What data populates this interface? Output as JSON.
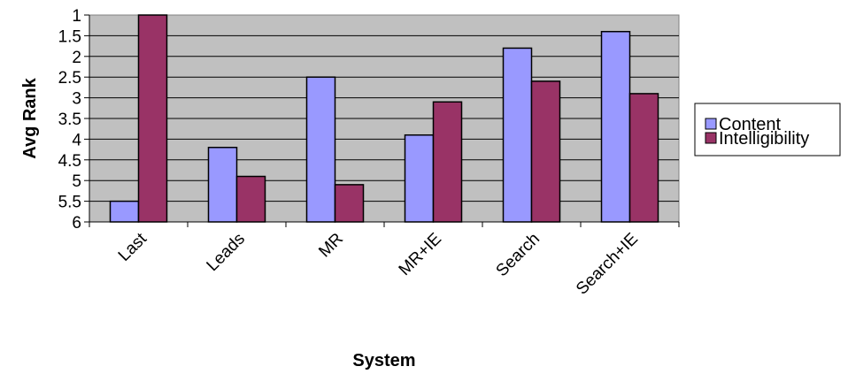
{
  "chart_data": {
    "type": "bar",
    "title": "",
    "xlabel": "System",
    "ylabel": "Avg Rank",
    "categories": [
      "Last",
      "Leads",
      "MR",
      "MR+IE",
      "Search",
      "Search+IE"
    ],
    "series": [
      {
        "name": "Content",
        "values": [
          5.5,
          4.2,
          2.5,
          3.9,
          1.8,
          1.4
        ],
        "color": "#9999ff"
      },
      {
        "name": "Intelligibility",
        "values": [
          1.0,
          4.9,
          5.1,
          3.1,
          2.6,
          2.9
        ],
        "color": "#993366"
      }
    ],
    "ylim": [
      1,
      6
    ],
    "y_inverted": true,
    "yticks": [
      {
        "value": 1,
        "label": "1"
      },
      {
        "value": 1.5,
        "label": "1.5"
      },
      {
        "value": 2,
        "label": "2"
      },
      {
        "value": 2.5,
        "label": "2.5"
      },
      {
        "value": 3,
        "label": "3"
      },
      {
        "value": 3.5,
        "label": "3.5"
      },
      {
        "value": 4,
        "label": "4"
      },
      {
        "value": 4.5,
        "label": "4.5"
      },
      {
        "value": 5,
        "label": "5"
      },
      {
        "value": 5.5,
        "label": "5.5"
      },
      {
        "value": 6,
        "label": "6"
      }
    ],
    "grid": true,
    "legend_position": "right",
    "plot_background": "#c0c0c0"
  }
}
